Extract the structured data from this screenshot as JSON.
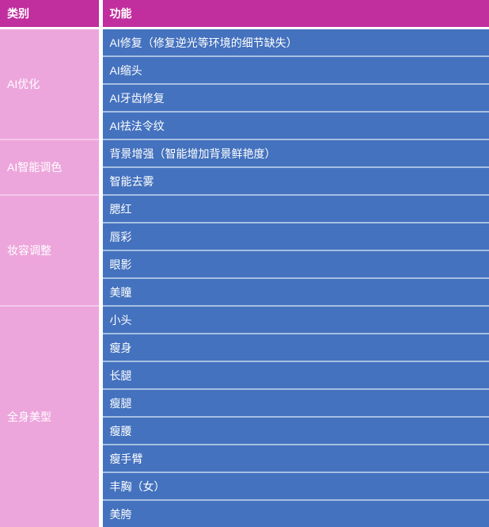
{
  "table": {
    "headers": [
      "类别",
      "功能"
    ],
    "sections": [
      {
        "category": "AI优化",
        "functions": [
          "AI修复（修复逆光等环境的细节缺失）",
          "AI缩头",
          "AI牙齿修复",
          "AI祛法令纹"
        ]
      },
      {
        "category": "AI智能调色",
        "functions": [
          "背景增强（智能增加背景鲜艳度）",
          "智能去雾"
        ]
      },
      {
        "category": "妆容调整",
        "functions": [
          "腮红",
          "唇彩",
          "眼影",
          "美瞳"
        ]
      },
      {
        "category": "全身美型",
        "functions": [
          "小头",
          "瘦身",
          "长腿",
          "瘦腿",
          "瘦腰",
          "瘦手臂",
          "丰胸（女）",
          "美胯"
        ]
      }
    ],
    "colors": {
      "header_bg": "#c12e9d",
      "category_bg": "#eda6dc",
      "function_bg": "#4472be",
      "text": "#ffffff",
      "blue_row_separator": "#a6bfe3",
      "pink_section_separator": "#f3c8ec",
      "white_separator": "#ffffff"
    }
  }
}
